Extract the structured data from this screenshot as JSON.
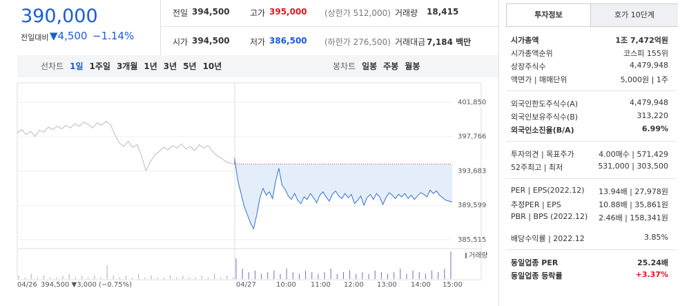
{
  "header": {
    "price": "390,000",
    "change_label": "전일대비",
    "change": "▼4,500",
    "change_pct": "−1.14%",
    "stats": [
      [
        "전일",
        "394,500"
      ],
      [
        "고가",
        "395,000",
        "(상한가 512,000)"
      ],
      [
        "거래량",
        "18,415"
      ],
      [
        "시가",
        "394,500"
      ],
      [
        "저가",
        "386,500",
        "(하한가 276,500)"
      ],
      [
        "거래대금",
        "7,184 백만"
      ]
    ]
  },
  "toolbar": {
    "line_label": "선차트",
    "periods": [
      "1일",
      "1주일",
      "3개월",
      "1년",
      "3년",
      "5년",
      "10년"
    ],
    "candle_label": "봉차트",
    "candles": [
      "일봉",
      "주봉",
      "월봉"
    ]
  },
  "chart_data": {
    "type": "line",
    "ylim": [
      384858,
      403327
    ],
    "yticks": [
      {
        "value": 401850,
        "label": "401,850"
      },
      {
        "value": 397766,
        "label": "397,766"
      },
      {
        "value": 393683,
        "label": "393,683"
      },
      {
        "value": 389599,
        "label": "389,599"
      },
      {
        "value": 385515,
        "label": "385,515"
      }
    ],
    "prev_close": 394500,
    "series": [
      {
        "color": "#b9b9b9",
        "values": [
          398200,
          398600,
          398000,
          398400,
          397800,
          398500,
          398300,
          398900,
          398600,
          399000,
          398700,
          399100,
          398800,
          399300,
          399000,
          399500,
          399200,
          398800,
          399400,
          399100,
          399600,
          399200,
          398000,
          397000,
          396600,
          397200,
          396500,
          396800,
          395500,
          393700,
          394800,
          395600,
          396000,
          396500,
          396200,
          396700,
          396400,
          396900,
          396300,
          396600,
          396100,
          396800,
          396400,
          396700,
          396000,
          395500,
          395200,
          394800,
          394600,
          394500
        ]
      },
      {
        "color": "#2f6fd0",
        "values": [
          395000,
          392500,
          391000,
          389500,
          388500,
          387500,
          386800,
          388500,
          390500,
          391600,
          390800,
          391200,
          390400,
          392500,
          394000,
          392000,
          391500,
          390700,
          390300,
          391000,
          390200,
          389800,
          390600,
          390300,
          391000,
          390500,
          389900,
          390800,
          391200,
          390600,
          390100,
          390900,
          391300,
          390700,
          390400,
          391000,
          390500,
          390900,
          389800,
          390200,
          390700,
          389600,
          390500,
          390900,
          390300,
          391000,
          390600,
          389700,
          390500,
          391100,
          390800,
          390400,
          390900,
          390600,
          391000,
          390400,
          390800,
          390300,
          390700,
          391100,
          390900,
          390600,
          391400,
          391000,
          391300,
          390800,
          390500,
          390200,
          390100,
          390000
        ]
      }
    ],
    "volume_label": "거래량",
    "volume": [
      [
        2,
        1,
        3,
        1,
        2,
        1,
        1,
        2,
        3,
        1,
        2,
        1,
        2,
        1,
        8,
        2,
        1,
        2,
        1,
        3,
        1,
        2,
        1,
        1,
        2,
        1,
        2,
        1,
        1,
        2,
        1,
        3,
        1,
        2,
        1
      ],
      [
        12,
        6,
        4,
        5,
        3,
        4,
        5,
        3,
        6,
        4,
        3,
        5,
        4,
        3,
        4,
        6,
        3,
        4,
        5,
        3,
        4,
        3,
        5,
        4,
        3,
        4,
        6,
        3,
        5,
        4,
        3,
        5,
        4,
        6,
        16
      ]
    ],
    "prev_date": "04/26",
    "prev_info": "394,500 ▼3,000 (−0.75%)",
    "times": [
      "04/27",
      "10:00",
      "11:00",
      "12:00",
      "13:00",
      "14:00",
      "15:00"
    ]
  },
  "side": {
    "tabs": [
      "투자정보",
      "호가 10단계"
    ],
    "groups": [
      [
        [
          "시가총액",
          "1조 7,472억원"
        ],
        [
          "시가총액순위",
          "코스피 155위"
        ],
        [
          "상장주식수",
          "4,479,948"
        ],
        [
          "액면가 | 매매단위",
          "5,000원 | 1주"
        ]
      ],
      [
        [
          "외국인한도주식수(A)",
          "4,479,948"
        ],
        [
          "외국인보유주식수(B)",
          "313,220"
        ],
        [
          "외국인소진율(B/A)",
          "6.99%"
        ]
      ],
      [
        [
          "투자의견 | 목표주가",
          "4.00매수 | 571,429"
        ],
        [
          "52주최고 | 최저",
          "531,000 | 303,500"
        ]
      ],
      [
        [
          "PER | EPS(2022.12)",
          "13.94배 | 27,978원"
        ],
        [
          "추정PER | EPS",
          "10.88배 | 35,861원"
        ],
        [
          "PBR | BPS (2022.12)",
          "2.46배 | 158,341원"
        ],
        [
          "배당수익률 | 2022.12",
          "3.85%"
        ]
      ],
      [
        [
          "동일업종 PER",
          "25.24배"
        ],
        [
          "동일업종 등락률",
          "+3.37%"
        ]
      ]
    ]
  }
}
